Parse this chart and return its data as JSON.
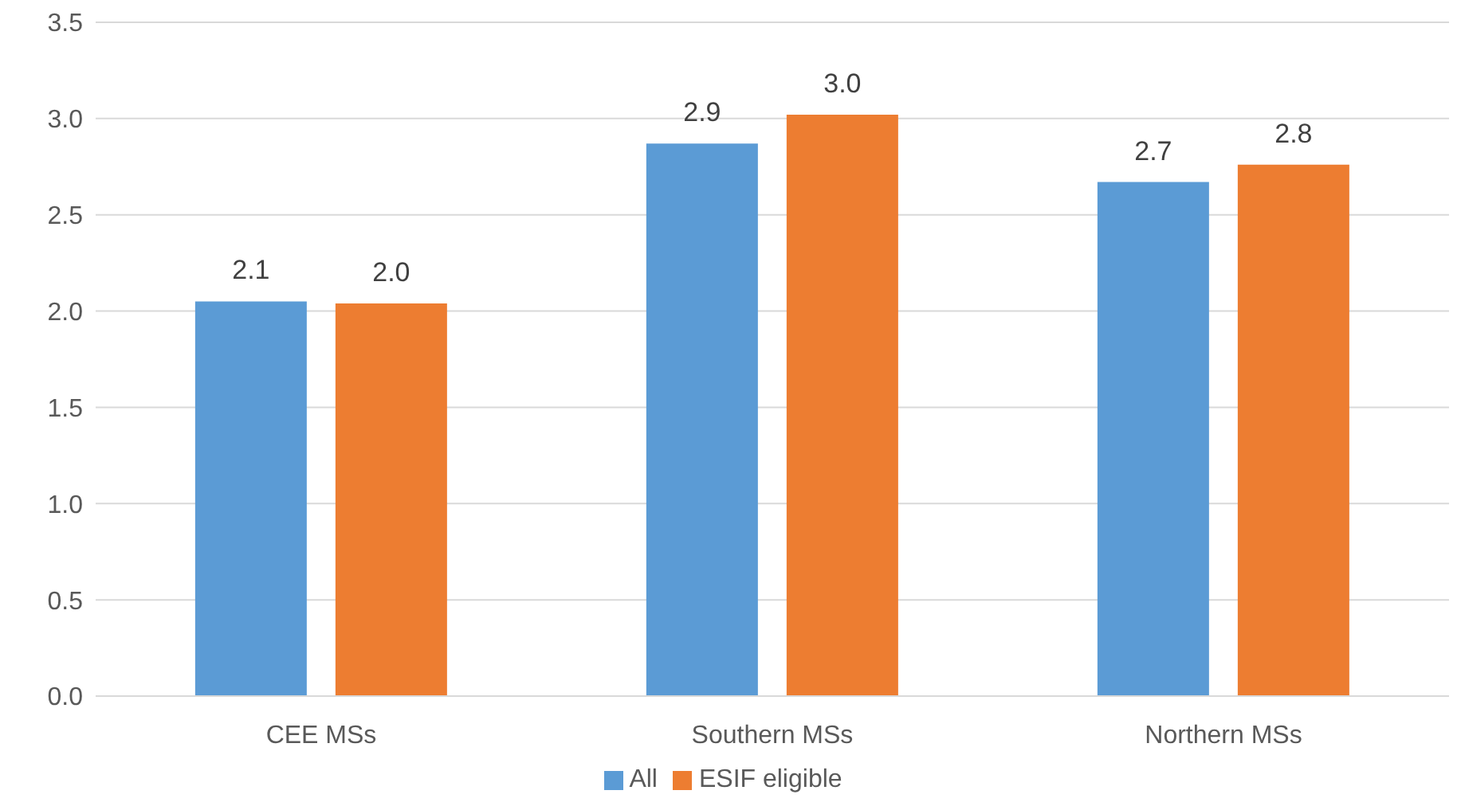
{
  "chart_data": {
    "type": "bar",
    "categories": [
      "CEE MSs",
      "Southern MSs",
      "Northern MSs"
    ],
    "series": [
      {
        "name": "All",
        "color": "#5b9bd5",
        "values": [
          2.05,
          2.87,
          2.67
        ],
        "value_labels": [
          "2.1",
          "2.9",
          "2.7"
        ]
      },
      {
        "name": "ESIF eligible",
        "color": "#ed7d31",
        "values": [
          2.04,
          3.02,
          2.76
        ],
        "value_labels": [
          "2.0",
          "3.0",
          "2.8"
        ]
      }
    ],
    "ylim": [
      0,
      3.5
    ],
    "yticks": [
      {
        "value": 0,
        "label": "0.0"
      },
      0.5,
      {
        "value": 1,
        "label": "1.0"
      },
      1.5,
      {
        "value": 2,
        "label": "2.0"
      },
      2.5,
      {
        "value": 3,
        "label": "3.0"
      },
      3.5
    ],
    "grid": "y",
    "legend": "bottom"
  }
}
